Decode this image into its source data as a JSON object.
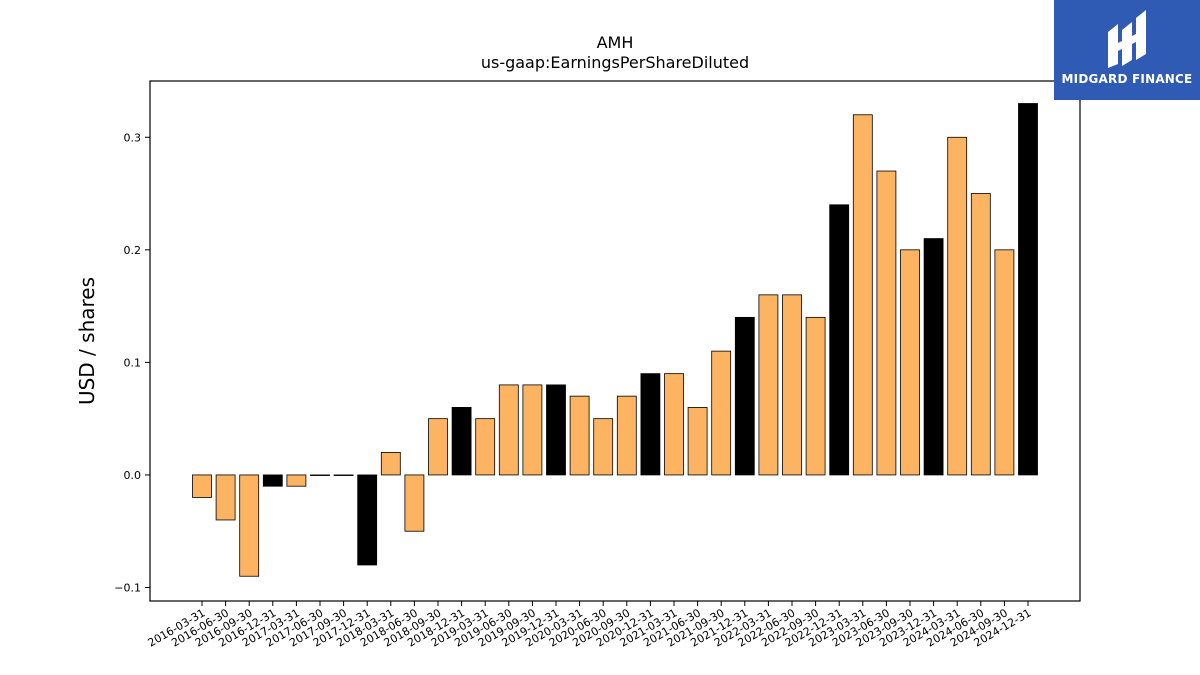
{
  "chart_data": {
    "type": "bar",
    "title": "AMH",
    "subtitle": "us-gaap:EarningsPerShareDiluted",
    "xlabel": "",
    "ylabel": "USD / shares",
    "ylim": [
      -0.112,
      0.35
    ],
    "yticks": [
      -0.1,
      0.0,
      0.1,
      0.2,
      0.3
    ],
    "ytick_labels": [
      "−0.1",
      "0.0",
      "0.1",
      "0.2",
      "0.3"
    ],
    "grid": false,
    "colors": {
      "quarter": "#fdb462",
      "annual": "#000000",
      "edge": "#000000"
    },
    "categories": [
      "2016-03-31",
      "2016-06-30",
      "2016-09-30",
      "2016-12-31",
      "2017-03-31",
      "2017-06-30",
      "2017-09-30",
      "2017-12-31",
      "2018-03-31",
      "2018-06-30",
      "2018-09-30",
      "2018-12-31",
      "2019-03-31",
      "2019-06-30",
      "2019-09-30",
      "2019-12-31",
      "2020-03-31",
      "2020-06-30",
      "2020-09-30",
      "2020-12-31",
      "2021-03-31",
      "2021-06-30",
      "2021-09-30",
      "2021-12-31",
      "2022-03-31",
      "2022-06-30",
      "2022-09-30",
      "2022-12-31",
      "2023-03-31",
      "2023-06-30",
      "2023-09-30",
      "2023-12-31",
      "2024-03-31",
      "2024-06-30",
      "2024-09-30",
      "2024-12-31"
    ],
    "values": [
      -0.02,
      -0.04,
      -0.09,
      -0.01,
      -0.01,
      0.0,
      0.0,
      -0.08,
      0.02,
      -0.05,
      0.05,
      0.06,
      0.05,
      0.08,
      0.08,
      0.08,
      0.07,
      0.05,
      0.07,
      0.09,
      0.09,
      0.06,
      0.11,
      0.14,
      0.16,
      0.16,
      0.14,
      0.24,
      0.32,
      0.27,
      0.2,
      0.21,
      0.3,
      0.25,
      0.2,
      0.33
    ],
    "annual": [
      false,
      false,
      false,
      true,
      false,
      false,
      false,
      true,
      false,
      false,
      false,
      true,
      false,
      false,
      false,
      true,
      false,
      false,
      false,
      true,
      false,
      false,
      false,
      true,
      false,
      false,
      false,
      true,
      false,
      false,
      false,
      true,
      false,
      false,
      false,
      true
    ]
  },
  "logo": {
    "text": "MIDGARD FINANCE",
    "icon": "midgard-logo-icon"
  }
}
